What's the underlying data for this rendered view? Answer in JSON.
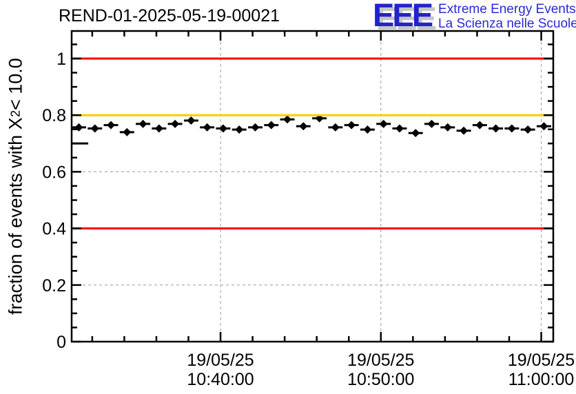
{
  "header": {
    "title": "REND-01-2025-05-19-00021",
    "logo": {
      "acronym": "EEE",
      "line1": "Extreme Energy Events",
      "line2": "La Scienza nelle Scuole",
      "color": "#2222cc"
    }
  },
  "chart_data": {
    "type": "scatter",
    "title": "REND-01-2025-05-19-00021",
    "ylabel": {
      "prefix": "fraction of events with X",
      "sup": "2",
      "suffix": " < 10.0"
    },
    "x_axis": {
      "date_label": "19/05/25",
      "domain": [
        "10:30:43",
        "11:00:45"
      ],
      "major_ticks": [
        "10:40:00",
        "10:50:00",
        "11:00:00"
      ],
      "minor_tick_interval_s": 120,
      "grid": true
    },
    "y_axis": {
      "domain": [
        0,
        1.0973
      ],
      "major_ticks": [
        0,
        0.2,
        0.4,
        0.6,
        0.8,
        1
      ],
      "tick_labels": [
        "0",
        "0.2",
        "0.4",
        "0.6",
        "0.8",
        "1"
      ],
      "minor_tick_interval": 0.05,
      "grid": true
    },
    "grid_color": "#999999",
    "reference_lines": [
      {
        "y": 1.0,
        "color": "#ff0000"
      },
      {
        "y": 0.8,
        "color": "#ffcc00"
      },
      {
        "y": 0.4,
        "color": "#ff0000"
      }
    ],
    "series": [
      {
        "name": "fraction of events with chi2 < 10",
        "marker": "diamond",
        "color": "#000000",
        "xerr_s": 27,
        "points": [
          {
            "t": "10:30:55",
            "v": 0.7,
            "marker": false,
            "xerr_s": 50
          },
          {
            "t": "10:31:10",
            "v": 0.757
          },
          {
            "t": "10:32:10",
            "v": 0.753
          },
          {
            "t": "10:33:10",
            "v": 0.765
          },
          {
            "t": "10:34:10",
            "v": 0.74
          },
          {
            "t": "10:35:10",
            "v": 0.769
          },
          {
            "t": "10:36:10",
            "v": 0.753
          },
          {
            "t": "10:37:10",
            "v": 0.769
          },
          {
            "t": "10:38:10",
            "v": 0.781
          },
          {
            "t": "10:39:10",
            "v": 0.757
          },
          {
            "t": "10:40:10",
            "v": 0.753
          },
          {
            "t": "10:41:10",
            "v": 0.749
          },
          {
            "t": "10:42:10",
            "v": 0.757
          },
          {
            "t": "10:43:10",
            "v": 0.765
          },
          {
            "t": "10:44:10",
            "v": 0.785
          },
          {
            "t": "10:45:10",
            "v": 0.761
          },
          {
            "t": "10:46:10",
            "v": 0.789
          },
          {
            "t": "10:47:10",
            "v": 0.757
          },
          {
            "t": "10:48:10",
            "v": 0.765
          },
          {
            "t": "10:49:10",
            "v": 0.749
          },
          {
            "t": "10:50:10",
            "v": 0.769
          },
          {
            "t": "10:51:10",
            "v": 0.753
          },
          {
            "t": "10:52:10",
            "v": 0.737
          },
          {
            "t": "10:53:10",
            "v": 0.769
          },
          {
            "t": "10:54:10",
            "v": 0.757
          },
          {
            "t": "10:55:10",
            "v": 0.745
          },
          {
            "t": "10:56:10",
            "v": 0.765
          },
          {
            "t": "10:57:10",
            "v": 0.753
          },
          {
            "t": "10:58:10",
            "v": 0.753
          },
          {
            "t": "10:59:10",
            "v": 0.749
          },
          {
            "t": "11:00:10",
            "v": 0.761
          }
        ]
      }
    ]
  }
}
